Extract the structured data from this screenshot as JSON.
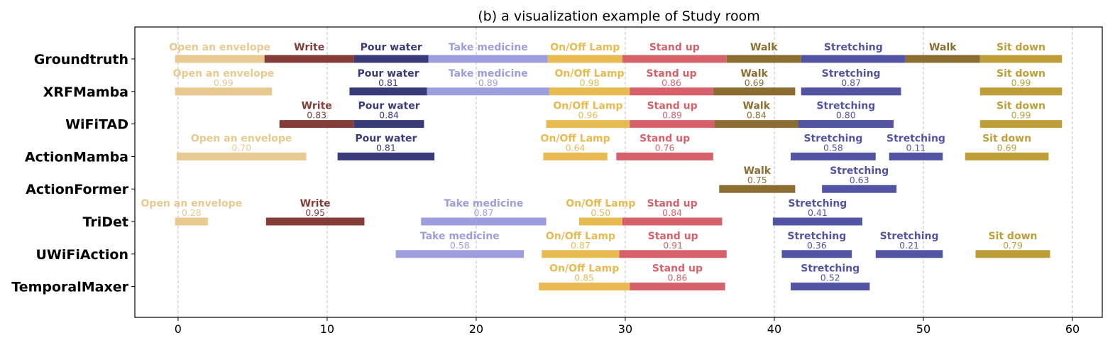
{
  "chart_data": {
    "type": "timeline",
    "title": "(b) a visualization example of Study room",
    "xlabel": "",
    "ylabel": "",
    "xlim": [
      -2.9,
      62
    ],
    "xticks": [
      0,
      10,
      20,
      30,
      40,
      50,
      60
    ],
    "grid": "vertical-dashed",
    "legend": "none",
    "colors": {
      "Open an envelope": "#e8c98f",
      "Write": "#843c39",
      "Pour water": "#393b79",
      "Take medicine": "#9c9ede",
      "On/Off Lamp": "#e7ba52",
      "Stand up": "#d6616b",
      "Walk": "#8c6d31",
      "Stretching": "#5254a3",
      "Sit down": "#bd9e39"
    },
    "rows": [
      {
        "name": "Groundtruth",
        "segments": [
          {
            "label": "Open an envelope",
            "start": -0.2,
            "end": 5.8
          },
          {
            "label": "Write",
            "start": 5.8,
            "end": 11.8
          },
          {
            "label": "Pour water",
            "start": 11.8,
            "end": 16.8
          },
          {
            "label": "Take medicine",
            "start": 16.8,
            "end": 24.8
          },
          {
            "label": "On/Off Lamp",
            "start": 24.8,
            "end": 29.8
          },
          {
            "label": "Stand up",
            "start": 29.8,
            "end": 36.8
          },
          {
            "label": "Walk",
            "start": 36.8,
            "end": 41.8
          },
          {
            "label": "Stretching",
            "start": 41.8,
            "end": 48.8
          },
          {
            "label": "Walk",
            "start": 48.8,
            "end": 53.8
          },
          {
            "label": "Sit down",
            "start": 53.8,
            "end": 59.3
          }
        ]
      },
      {
        "name": "XRFMamba",
        "segments": [
          {
            "label": "Open an envelope",
            "score": "0.99",
            "start": -0.2,
            "end": 6.3
          },
          {
            "label": "Pour water",
            "score": "0.81",
            "start": 11.5,
            "end": 16.7
          },
          {
            "label": "Take medicine",
            "score": "0.89",
            "start": 16.7,
            "end": 24.9
          },
          {
            "label": "On/Off Lamp",
            "score": "0.98",
            "start": 24.9,
            "end": 30.3
          },
          {
            "label": "Stand up",
            "score": "0.86",
            "start": 30.3,
            "end": 35.9
          },
          {
            "label": "Walk",
            "score": "0.69",
            "start": 35.9,
            "end": 41.4
          },
          {
            "label": "Stretching",
            "score": "0.87",
            "start": 41.8,
            "end": 48.5
          },
          {
            "label": "Sit down",
            "score": "0.99",
            "start": 53.8,
            "end": 59.3
          }
        ]
      },
      {
        "name": "WiFiTAD",
        "segments": [
          {
            "label": "Write",
            "score": "0.83",
            "start": 6.8,
            "end": 11.8
          },
          {
            "label": "Pour water",
            "score": "0.84",
            "start": 11.8,
            "end": 16.5
          },
          {
            "label": "On/Off Lamp",
            "score": "0.96",
            "start": 24.7,
            "end": 30.3
          },
          {
            "label": "Stand up",
            "score": "0.89",
            "start": 30.3,
            "end": 36.0
          },
          {
            "label": "Walk",
            "score": "0.84",
            "start": 36.0,
            "end": 41.6
          },
          {
            "label": "Stretching",
            "score": "0.80",
            "start": 41.6,
            "end": 48.0
          },
          {
            "label": "Sit down",
            "score": "0.99",
            "start": 53.8,
            "end": 59.3
          }
        ]
      },
      {
        "name": "ActionMamba",
        "segments": [
          {
            "label": "Open an envelope",
            "score": "0.70",
            "start": -0.1,
            "end": 8.6
          },
          {
            "label": "Pour water",
            "score": "0.81",
            "start": 10.7,
            "end": 17.2
          },
          {
            "label": "On/Off Lamp",
            "score": "0.64",
            "start": 24.5,
            "end": 28.8
          },
          {
            "label": "Stand up",
            "score": "0.76",
            "start": 29.4,
            "end": 35.9
          },
          {
            "label": "Stretching",
            "score": "0.58",
            "start": 41.1,
            "end": 46.8
          },
          {
            "label": "Stretching",
            "score": "0.11",
            "start": 47.7,
            "end": 51.3
          },
          {
            "label": "Sit down",
            "score": "0.69",
            "start": 52.8,
            "end": 58.4
          }
        ]
      },
      {
        "name": "ActionFormer",
        "segments": [
          {
            "label": "Walk",
            "score": "0.75",
            "start": 36.3,
            "end": 41.4
          },
          {
            "label": "Stretching",
            "score": "0.63",
            "start": 43.2,
            "end": 48.2
          }
        ]
      },
      {
        "name": "TriDet",
        "segments": [
          {
            "label": "Open an envelope",
            "score": "0.28",
            "start": -0.2,
            "end": 2.0
          },
          {
            "label": "Write",
            "score": "0.95",
            "start": 5.9,
            "end": 12.5
          },
          {
            "label": "Take medicine",
            "score": "0.87",
            "start": 16.3,
            "end": 24.7
          },
          {
            "label": "On/Off Lamp",
            "score": "0.50",
            "start": 26.9,
            "end": 29.8
          },
          {
            "label": "Stand up",
            "score": "0.84",
            "start": 29.8,
            "end": 36.5
          },
          {
            "label": "Stretching",
            "score": "0.41",
            "start": 39.9,
            "end": 45.9
          }
        ]
      },
      {
        "name": "UWiFiAction",
        "segments": [
          {
            "label": "Take medicine",
            "score": "0.58",
            "start": 14.6,
            "end": 23.2
          },
          {
            "label": "On/Off Lamp",
            "score": "0.87",
            "start": 24.4,
            "end": 29.6
          },
          {
            "label": "Stand up",
            "score": "0.91",
            "start": 29.6,
            "end": 36.8
          },
          {
            "label": "Stretching",
            "score": "0.36",
            "start": 40.5,
            "end": 45.2
          },
          {
            "label": "Stretching",
            "score": "0.21",
            "start": 46.8,
            "end": 51.3
          },
          {
            "label": "Sit down",
            "score": "0.79",
            "start": 53.5,
            "end": 58.5
          }
        ]
      },
      {
        "name": "TemporalMaxer",
        "segments": [
          {
            "label": "On/Off Lamp",
            "score": "0.85",
            "start": 24.2,
            "end": 30.3
          },
          {
            "label": "Stand up",
            "score": "0.86",
            "start": 30.3,
            "end": 36.7
          },
          {
            "label": "Stretching",
            "score": "0.52",
            "start": 41.1,
            "end": 46.4
          }
        ]
      }
    ]
  }
}
